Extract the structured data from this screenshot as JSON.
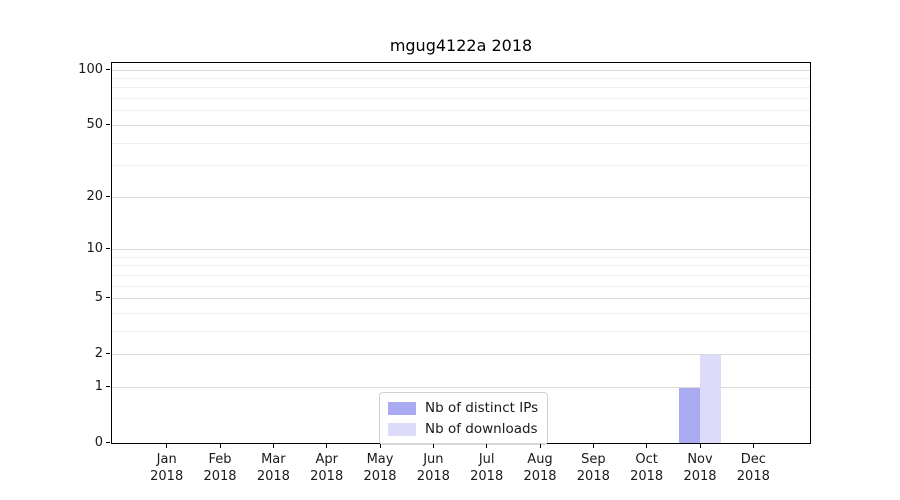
{
  "chart_data": {
    "type": "bar",
    "title": "mgug4122a 2018",
    "categories": [
      "Jan\n2018",
      "Feb\n2018",
      "Mar\n2018",
      "Apr\n2018",
      "May\n2018",
      "Jun\n2018",
      "Jul\n2018",
      "Aug\n2018",
      "Sep\n2018",
      "Oct\n2018",
      "Nov\n2018",
      "Dec\n2018"
    ],
    "series": [
      {
        "name": "Nb of distinct IPs",
        "color": "#aaaaf2",
        "values": [
          0,
          0,
          0,
          0,
          0,
          0,
          0,
          0,
          0,
          0,
          1,
          0
        ]
      },
      {
        "name": "Nb of downloads",
        "color": "#dcdcfa",
        "values": [
          0,
          0,
          0,
          0,
          0,
          0,
          0,
          0,
          0,
          0,
          2,
          0
        ]
      }
    ],
    "xlabel": "",
    "ylabel": "",
    "yscale": "log1p",
    "ylim": [
      0,
      110
    ],
    "yticks": [
      0,
      1,
      2,
      5,
      10,
      20,
      50,
      100
    ],
    "yticks_minor": [
      3,
      4,
      6,
      7,
      8,
      9,
      30,
      40,
      60,
      70,
      80,
      90
    ],
    "grid": "horizontal",
    "legend": {
      "position": "lower-center-inside",
      "entries": [
        "Nb of distinct IPs",
        "Nb of downloads"
      ]
    }
  },
  "colors": {
    "grid_major": "#d9d9d9",
    "grid_minor": "#efefef",
    "spine": "#000000",
    "text": "#1a1a1a",
    "bar_distinct_ips": "#aaaaf2",
    "bar_downloads": "#dcdcfa",
    "legend_border": "#d2d2d2"
  }
}
